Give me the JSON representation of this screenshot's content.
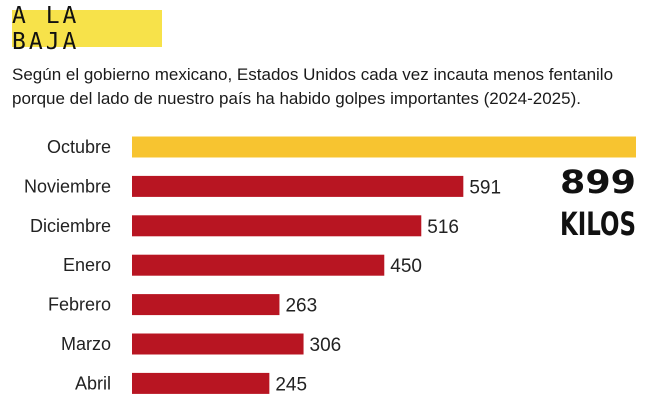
{
  "header": {
    "title": "A LA BAJA",
    "subtitle_line1": "Según el gobierno mexicano, Estados Unidos cada vez incauta menos fentanilo",
    "subtitle_line2": "porque del lado de nuestro país ha habido golpes importantes (2024-2025)."
  },
  "colors": {
    "title_bg": "#f7e24a",
    "highlight_bar": "#f7c430",
    "bar": "#b81522"
  },
  "chart_data": {
    "type": "bar",
    "orientation": "horizontal",
    "title": "A LA BAJA",
    "categories": [
      "Octubre",
      "Noviembre",
      "Diciembre",
      "Enero",
      "Febrero",
      "Marzo",
      "Abril"
    ],
    "values": [
      899,
      591,
      516,
      450,
      263,
      306,
      245
    ],
    "value_labels": [
      "",
      "591",
      "516",
      "450",
      "263",
      "306",
      "245"
    ],
    "highlight_index": 0,
    "annotation": {
      "value": "899",
      "unit": "KILOS"
    },
    "xlim": [
      0,
      899
    ],
    "xlabel": "",
    "ylabel": ""
  }
}
